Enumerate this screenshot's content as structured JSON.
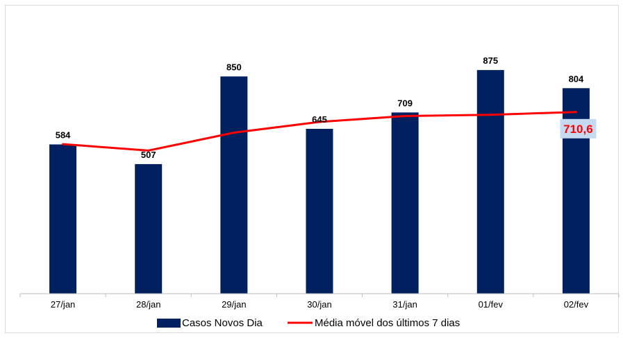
{
  "chart_data": {
    "type": "bar",
    "categories": [
      "27/jan",
      "28/jan",
      "29/jan",
      "30/jan",
      "31/jan",
      "01/fev",
      "02/fev"
    ],
    "series": [
      {
        "name": "Casos Novos Dia",
        "type": "bar",
        "values": [
          584,
          507,
          850,
          645,
          709,
          875,
          804
        ],
        "color": "#002060"
      },
      {
        "name": "Média móvel dos últimos 7 dias",
        "type": "line",
        "values": [
          585,
          560,
          630,
          672,
          695,
          700,
          710.6
        ],
        "color": "#ff0000"
      }
    ],
    "data_labels": [
      "584",
      "507",
      "850",
      "645",
      "709",
      "875",
      "804"
    ],
    "callout": {
      "label": "710,6",
      "color": "#ff0000",
      "background": "#c5d9f1"
    },
    "ylim": [
      0,
      1000
    ],
    "grid": false,
    "legend": "bottom"
  }
}
